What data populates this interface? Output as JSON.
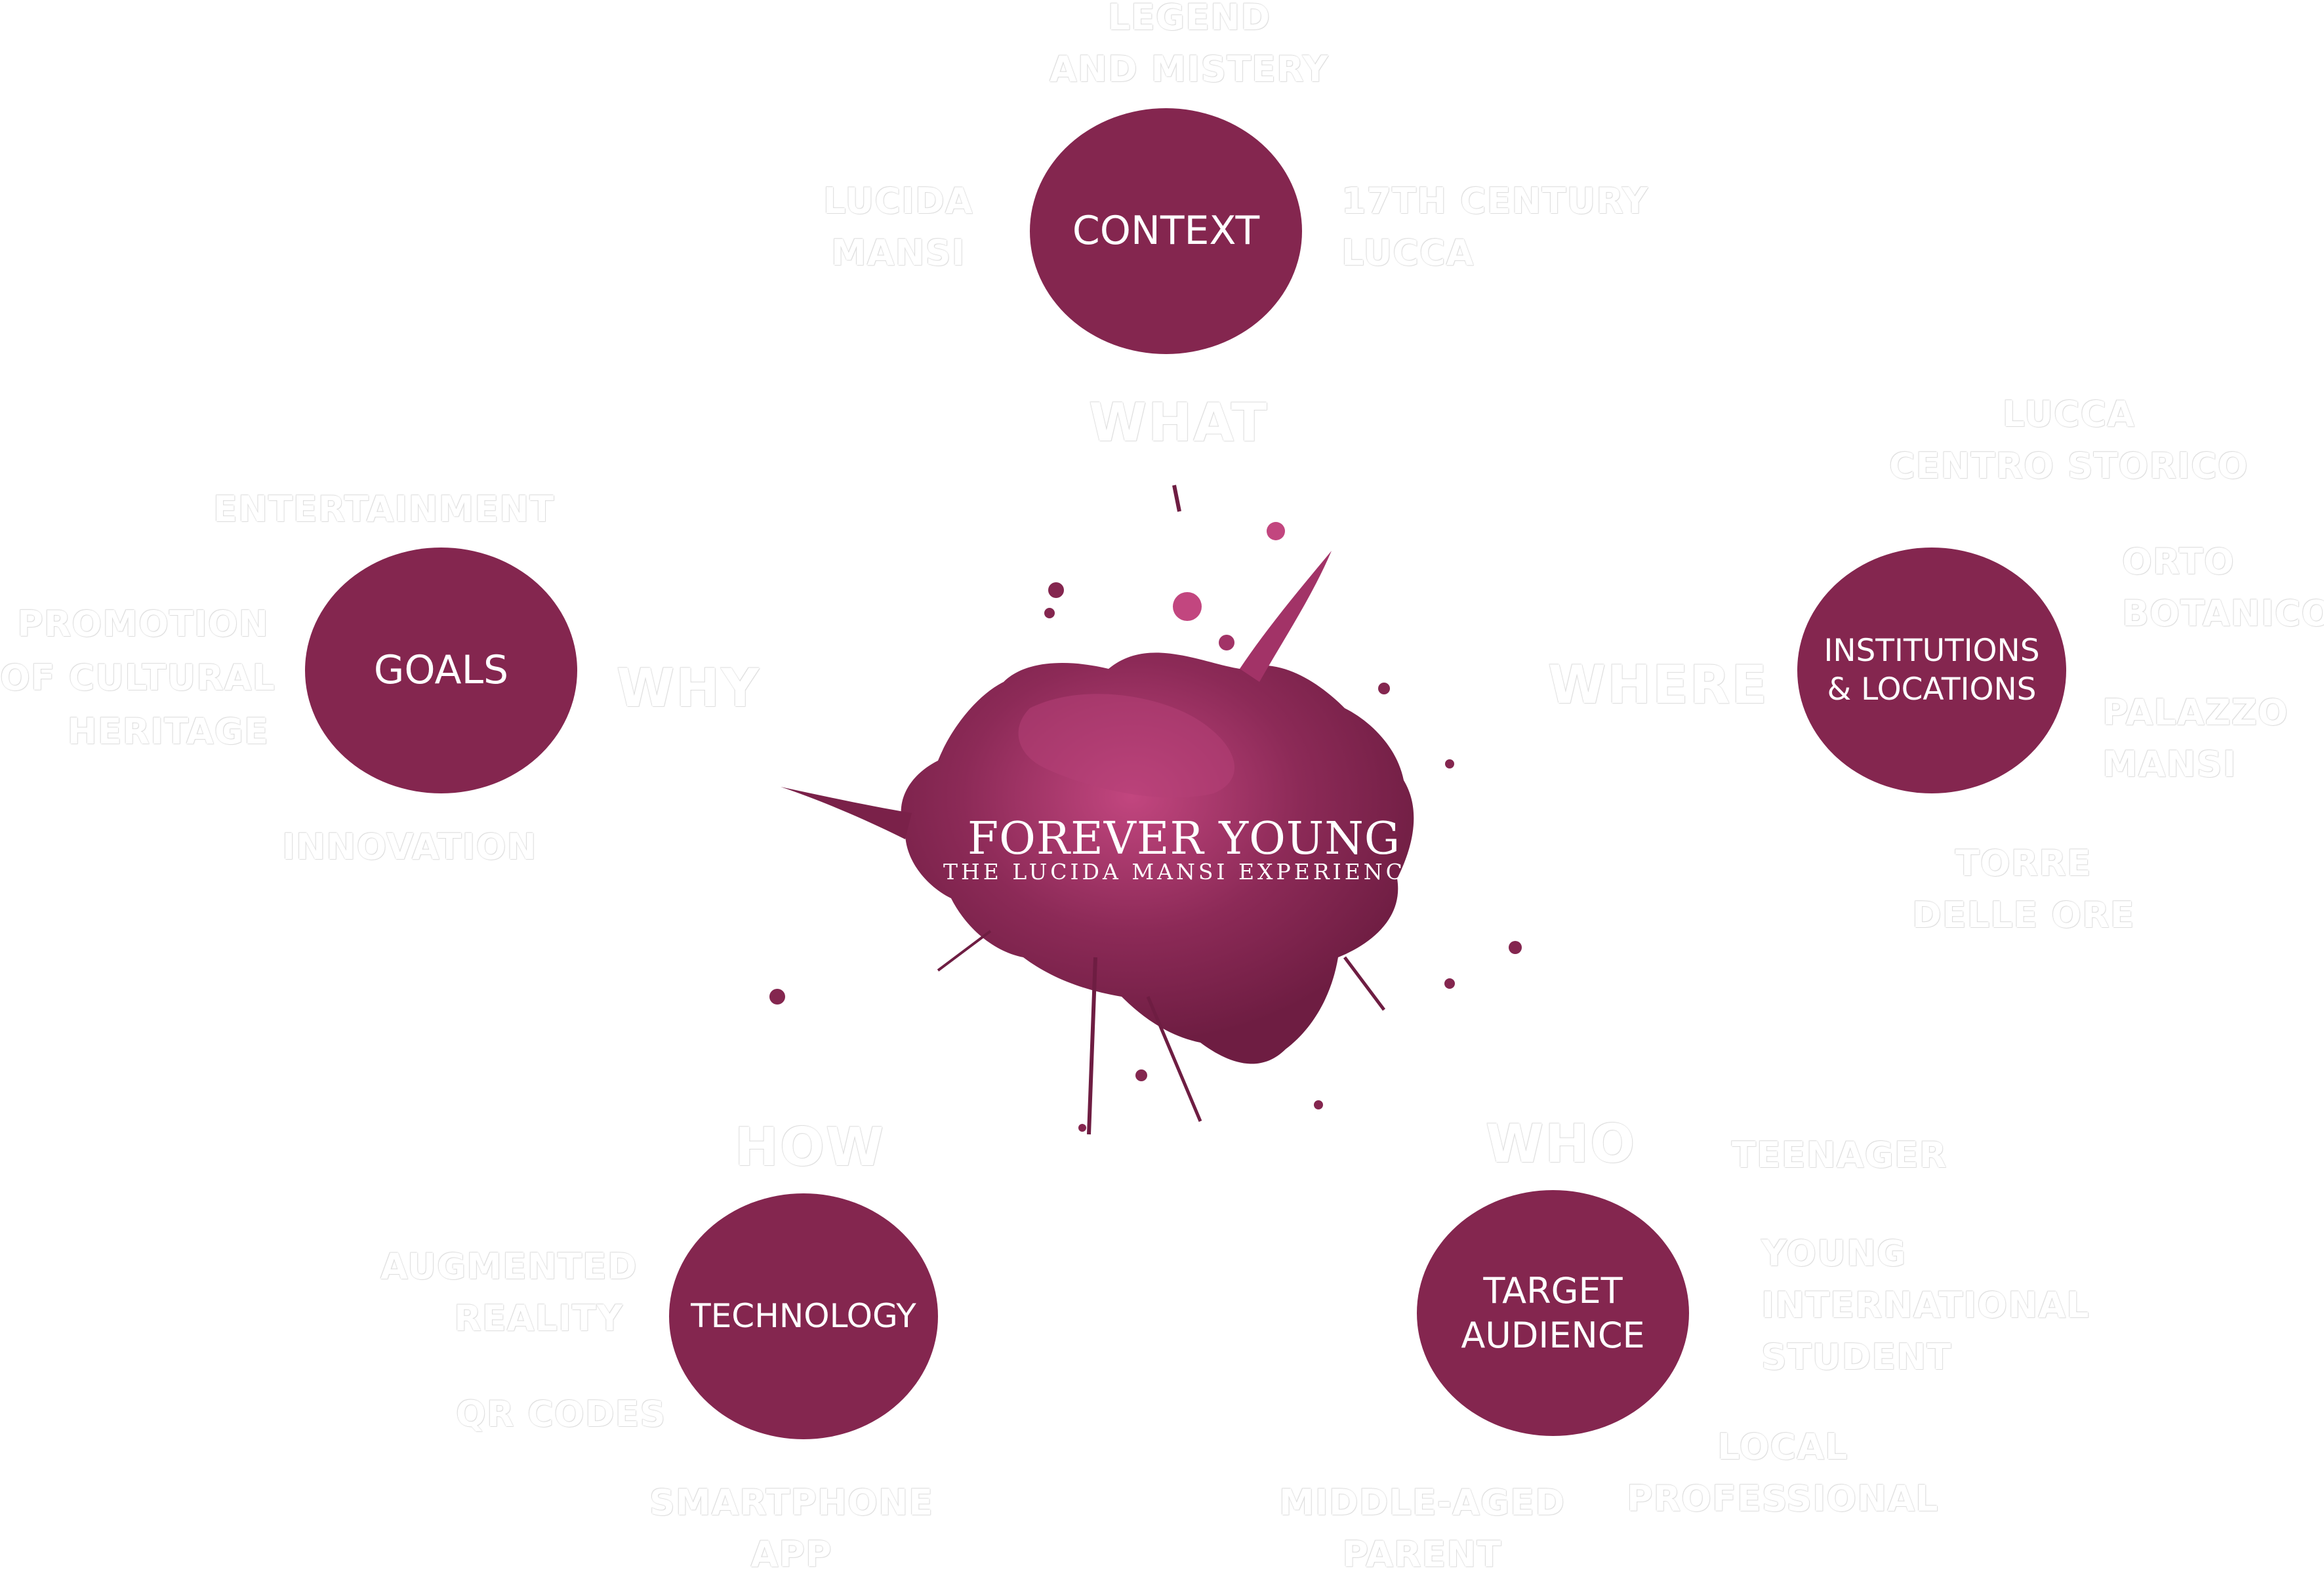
{
  "center": {
    "title": "FOREVER YOUNG",
    "subtitle": "THE LUCIDA MANSI EXPERIENCE",
    "splash_color": "#84264f"
  },
  "questions": {
    "what": "WHAT",
    "why": "WHY",
    "where": "WHERE",
    "how": "HOW",
    "who": "WHO"
  },
  "context": {
    "label": "CONTEXT",
    "items": {
      "legend": [
        "LEGEND",
        "AND MISTERY"
      ],
      "lucida": [
        "LUCIDA",
        "MANSI"
      ],
      "century": [
        "17TH CENTURY",
        "LUCCA"
      ]
    }
  },
  "goals": {
    "label": "GOALS",
    "items": {
      "entertainment": [
        "ENTERTAINMENT"
      ],
      "promotion": [
        "PROMOTION",
        "OF CULTURAL",
        "HERITAGE"
      ],
      "innovation": [
        "INNOVATION"
      ]
    }
  },
  "institutions": {
    "label": [
      "INSTITUTIONS",
      "& LOCATIONS"
    ],
    "items": {
      "centro": [
        "LUCCA",
        "CENTRO STORICO"
      ],
      "orto": [
        "ORTO",
        "BOTANICO"
      ],
      "palazzo": [
        "PALAZZO",
        "MANSI"
      ],
      "torre": [
        "TORRE",
        "DELLE ORE"
      ]
    }
  },
  "technology": {
    "label": "TECHNOLOGY",
    "items": {
      "ar": [
        "AUGMENTED",
        "REALITY"
      ],
      "qr": [
        "QR CODES"
      ],
      "app": [
        "SMARTPHONE",
        "APP"
      ]
    }
  },
  "audience": {
    "label": [
      "TARGET",
      "AUDIENCE"
    ],
    "items": {
      "teenager": [
        "TEENAGER"
      ],
      "student": [
        "YOUNG",
        "INTERNATIONAL",
        "STUDENT"
      ],
      "professional": [
        "LOCAL",
        "PROFESSIONAL"
      ],
      "parent": [
        "MIDDLE-AGED",
        "PARENT"
      ]
    }
  }
}
